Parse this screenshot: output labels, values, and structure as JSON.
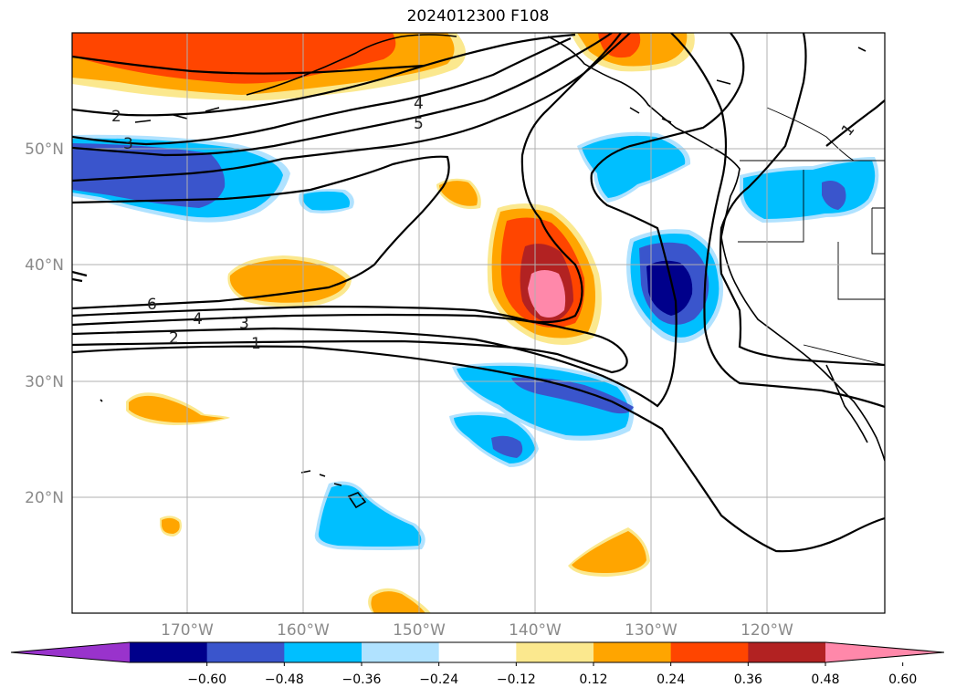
{
  "title": "2024012300 F108",
  "lat_labels": [
    "50°N",
    "40°N",
    "30°N",
    "20°N"
  ],
  "lon_labels": [
    "170°W",
    "160°W",
    "150°W",
    "140°W",
    "130°W",
    "120°W"
  ],
  "contour_labels": [
    "2",
    "3",
    "4",
    "5",
    "6",
    "4",
    "3",
    "2",
    "1",
    "1"
  ],
  "colorbar": {
    "ticks": [
      "−0.60",
      "−0.48",
      "−0.36",
      "−0.24",
      "−0.12",
      "0.12",
      "0.24",
      "0.36",
      "0.48",
      "0.60"
    ],
    "colors": [
      "#9933cc",
      "#00008b",
      "#3a55cc",
      "#00bfff",
      "#b0e2ff",
      "#ffffff",
      "#fbe88e",
      "#ffa500",
      "#ff4500",
      "#b22222",
      "#ff88aa"
    ]
  },
  "palette": {
    "ocean": "#ffffff",
    "contour": "#000000",
    "grid": "#b0b0b0"
  }
}
